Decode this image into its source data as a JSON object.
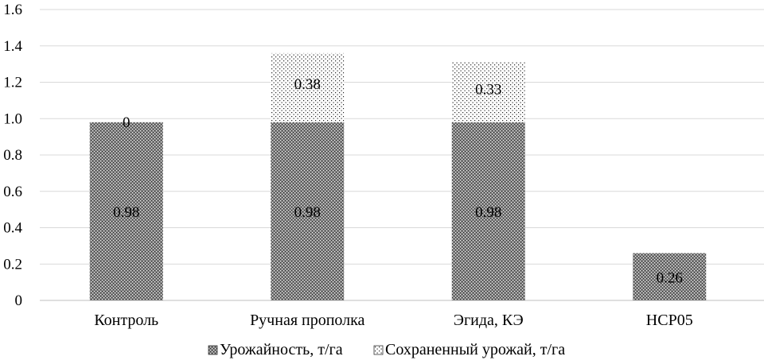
{
  "chart_data": {
    "type": "bar",
    "stacked": true,
    "categories": [
      "Контроль",
      "Ручная прополка",
      "Эгида, КЭ",
      "НСР05"
    ],
    "series": [
      {
        "name": "Урожайность, т/га",
        "values": [
          0.98,
          0.98,
          0.98,
          0.26
        ],
        "labels": [
          "0.98",
          "0.98",
          "0.98",
          "0.26"
        ],
        "pattern": "crosshatch-dark"
      },
      {
        "name": "Сохраненный урожай, т/га",
        "values": [
          0,
          0.38,
          0.33,
          null
        ],
        "labels": [
          "0",
          "0.38",
          "0.33",
          ""
        ],
        "pattern": "dotted-light"
      }
    ],
    "ylim": [
      0,
      1.6
    ],
    "yticks": [
      "0",
      "0.2",
      "0.4",
      "0.6",
      "0.8",
      "1.0",
      "1.2",
      "1.4",
      "1.6"
    ],
    "grid": true,
    "legend_position": "bottom",
    "colors": {
      "grid": "#d9d9d9",
      "bar_dark": "#555555",
      "bar_light": "#ffffff",
      "axis": "#bfbfbf"
    }
  }
}
